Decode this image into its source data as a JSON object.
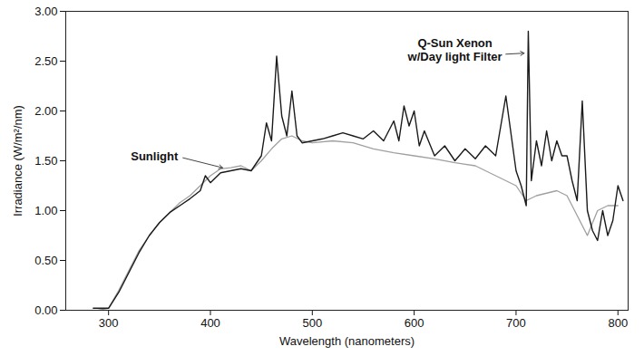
{
  "chart_data": {
    "type": "line",
    "xlabel": "Wavelength (nanometers)",
    "ylabel": "Irradiance (W/m²/nm)",
    "xlim": [
      258,
      810
    ],
    "ylim": [
      0,
      3
    ],
    "xticks": [
      300,
      400,
      500,
      600,
      700,
      800
    ],
    "yticks": [
      {
        "value": 0,
        "label": "0.00"
      },
      {
        "value": 0.5,
        "label": "0.50"
      },
      {
        "value": 1,
        "label": "1.00"
      },
      {
        "value": 1.5,
        "label": "1.50"
      },
      {
        "value": 2,
        "label": "2.00"
      },
      {
        "value": 2.5,
        "label": "2.50"
      },
      {
        "value": 3,
        "label": "3.00"
      }
    ],
    "grid": false,
    "series": [
      {
        "name": "Sunlight",
        "color": "#a0a0a0",
        "x": [
          290,
          300,
          310,
          320,
          330,
          340,
          350,
          360,
          370,
          380,
          390,
          400,
          410,
          420,
          430,
          440,
          450,
          460,
          470,
          480,
          490,
          500,
          520,
          540,
          560,
          580,
          600,
          620,
          640,
          660,
          680,
          700,
          710,
          720,
          740,
          750,
          760,
          770,
          780,
          790,
          800
        ],
        "values": [
          0,
          0.02,
          0.2,
          0.4,
          0.6,
          0.75,
          0.88,
          0.98,
          1.08,
          1.15,
          1.25,
          1.35,
          1.42,
          1.43,
          1.45,
          1.4,
          1.5,
          1.62,
          1.72,
          1.75,
          1.7,
          1.68,
          1.7,
          1.68,
          1.62,
          1.58,
          1.55,
          1.52,
          1.48,
          1.45,
          1.35,
          1.25,
          1.1,
          1.15,
          1.2,
          1.15,
          0.95,
          0.75,
          1.0,
          1.05,
          1.05
        ]
      },
      {
        "name": "Q-Sun Xenon\nw/Day light Filter",
        "color": "#1a1a1a",
        "x": [
          285,
          300,
          310,
          320,
          330,
          340,
          350,
          360,
          370,
          380,
          390,
          395,
          400,
          410,
          420,
          430,
          440,
          450,
          455,
          460,
          465,
          470,
          475,
          480,
          485,
          490,
          500,
          510,
          520,
          530,
          540,
          550,
          560,
          570,
          580,
          585,
          590,
          595,
          600,
          605,
          610,
          620,
          630,
          640,
          650,
          660,
          670,
          680,
          690,
          700,
          705,
          710,
          712,
          715,
          720,
          725,
          730,
          735,
          740,
          745,
          750,
          755,
          760,
          765,
          770,
          775,
          780,
          785,
          790,
          795,
          800,
          805
        ],
        "values": [
          0.02,
          0.02,
          0.18,
          0.38,
          0.58,
          0.75,
          0.88,
          0.98,
          1.05,
          1.12,
          1.2,
          1.35,
          1.28,
          1.38,
          1.4,
          1.42,
          1.4,
          1.55,
          1.88,
          1.7,
          2.55,
          1.95,
          1.75,
          2.2,
          1.75,
          1.68,
          1.7,
          1.72,
          1.75,
          1.78,
          1.75,
          1.72,
          1.8,
          1.7,
          1.9,
          1.7,
          2.05,
          1.85,
          2.0,
          1.65,
          1.8,
          1.55,
          1.65,
          1.5,
          1.62,
          1.52,
          1.65,
          1.55,
          2.15,
          1.4,
          1.25,
          1.05,
          2.8,
          1.3,
          1.7,
          1.45,
          1.8,
          1.5,
          1.7,
          1.55,
          1.55,
          1.3,
          1.1,
          2.1,
          1.0,
          0.8,
          0.7,
          1.0,
          0.75,
          0.9,
          1.25,
          1.1
        ]
      }
    ],
    "annotations": [
      {
        "text": "Sunlight",
        "x": 345,
        "y": 1.55,
        "arrow_to": [
          412,
          1.43
        ]
      },
      {
        "text": "Q-Sun Xenon\nw/Day light Filter",
        "x": 640,
        "y": 2.62,
        "arrow_to": [
          708,
          2.58
        ]
      }
    ]
  }
}
